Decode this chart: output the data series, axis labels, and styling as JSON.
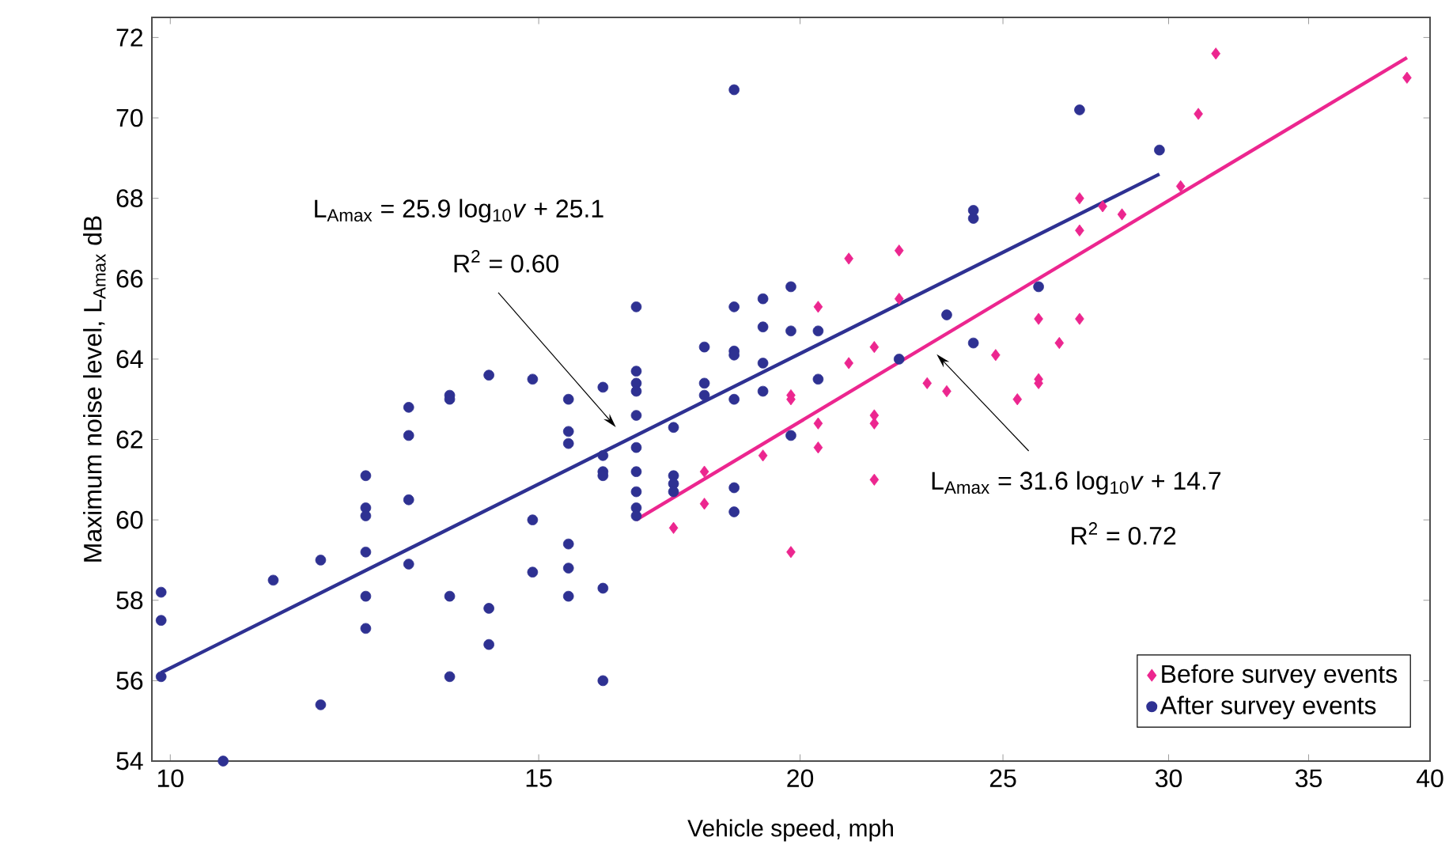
{
  "chart_data": {
    "type": "scatter",
    "xlabel": "Vehicle speed, mph",
    "ylabel": "Maximum noise level, L$_{Amax}$ dB",
    "log": "x",
    "xlim": [
      9.8,
      40
    ],
    "ylim": [
      54,
      72.5
    ],
    "xticks": [
      10,
      15,
      20,
      25,
      30,
      35,
      40
    ],
    "yticks": [
      54,
      56,
      58,
      60,
      62,
      64,
      66,
      68,
      70,
      72
    ],
    "grid": false,
    "legend": "bottom right",
    "series": [
      {
        "name": "Before survey events",
        "marker": "diamond",
        "color": "#ec268f",
        "x": [
          17.4,
          18.0,
          18.0,
          19.2,
          19.8,
          19.8,
          19.8,
          20.4,
          20.4,
          20.4,
          21.1,
          21.1,
          21.7,
          21.7,
          21.7,
          21.7,
          22.3,
          22.3,
          23.0,
          23.5,
          24.8,
          25.4,
          26.0,
          26.0,
          26.0,
          26.6,
          27.2,
          27.2,
          27.2,
          27.9,
          28.5,
          30.4,
          31.0,
          31.6,
          39.0
        ],
        "values": [
          59.8,
          61.2,
          60.4,
          61.6,
          63.1,
          63.0,
          59.2,
          65.3,
          62.4,
          61.8,
          66.5,
          63.9,
          64.3,
          62.6,
          62.4,
          61.0,
          66.7,
          65.5,
          63.4,
          63.2,
          64.1,
          63.0,
          65.0,
          63.5,
          63.4,
          64.4,
          68.0,
          67.2,
          65.0,
          67.8,
          67.6,
          68.3,
          70.1,
          71.6,
          71.0
        ]
      },
      {
        "name": "After survey events",
        "marker": "circle",
        "color": "#2e3192",
        "x": [
          9.9,
          9.9,
          9.9,
          10.6,
          11.2,
          11.8,
          11.8,
          12.4,
          12.4,
          12.4,
          12.4,
          12.4,
          12.4,
          13.0,
          13.0,
          13.0,
          13.0,
          13.6,
          13.6,
          13.6,
          13.6,
          14.2,
          14.2,
          14.2,
          14.9,
          14.9,
          14.9,
          15.5,
          15.5,
          15.5,
          15.5,
          15.5,
          15.5,
          16.1,
          16.1,
          16.1,
          16.1,
          16.1,
          16.1,
          16.7,
          16.7,
          16.7,
          16.7,
          16.7,
          16.7,
          16.7,
          16.7,
          16.7,
          16.7,
          17.4,
          17.4,
          17.4,
          17.4,
          18.0,
          18.0,
          18.0,
          18.6,
          18.6,
          18.6,
          18.6,
          18.6,
          18.6,
          18.6,
          19.2,
          19.2,
          19.2,
          19.2,
          19.8,
          19.8,
          19.8,
          20.4,
          20.4,
          22.3,
          23.5,
          24.2,
          24.2,
          24.2,
          26.0,
          27.2,
          29.7
        ],
        "values": [
          58.2,
          57.5,
          56.1,
          54.0,
          58.5,
          59.0,
          55.4,
          61.1,
          60.3,
          60.1,
          59.2,
          58.1,
          57.3,
          62.8,
          62.1,
          60.5,
          58.9,
          63.1,
          63.0,
          58.1,
          56.1,
          63.6,
          57.8,
          56.9,
          63.5,
          60.0,
          58.7,
          63.0,
          62.2,
          61.9,
          59.4,
          58.8,
          58.1,
          63.3,
          61.6,
          61.2,
          61.1,
          58.3,
          56.0,
          65.3,
          63.7,
          63.4,
          63.2,
          62.6,
          61.8,
          61.2,
          60.7,
          60.3,
          60.1,
          62.3,
          61.1,
          60.9,
          60.7,
          64.3,
          63.4,
          63.1,
          70.7,
          65.3,
          64.2,
          64.1,
          63.0,
          60.8,
          60.2,
          65.5,
          64.8,
          63.9,
          63.2,
          65.8,
          64.7,
          62.1,
          64.7,
          63.5,
          64.0,
          65.1,
          67.7,
          67.5,
          64.4,
          65.8,
          70.2,
          69.2
        ]
      },
      {
        "type": "line",
        "marker": "none",
        "line_style": "solid",
        "color": "#2e3192",
        "x": [
          9.9,
          29.7
        ],
        "values": [
          56.2,
          68.6
        ]
      },
      {
        "type": "line",
        "marker": "none",
        "line_style": "solid",
        "color": "#ec268f",
        "x": [
          16.7,
          39.0
        ],
        "values": [
          60.0,
          71.5
        ]
      }
    ],
    "annotations": [
      "L$_{Amax}$ = 25.9 log$_{10}$*v* + 25.1",
      "R$^{2}$ = 0.60",
      "L$_{Amax}$ = 31.6 log$_{10}$*v* + 14.7",
      "R$^{2}$ = 0.72"
    ]
  }
}
